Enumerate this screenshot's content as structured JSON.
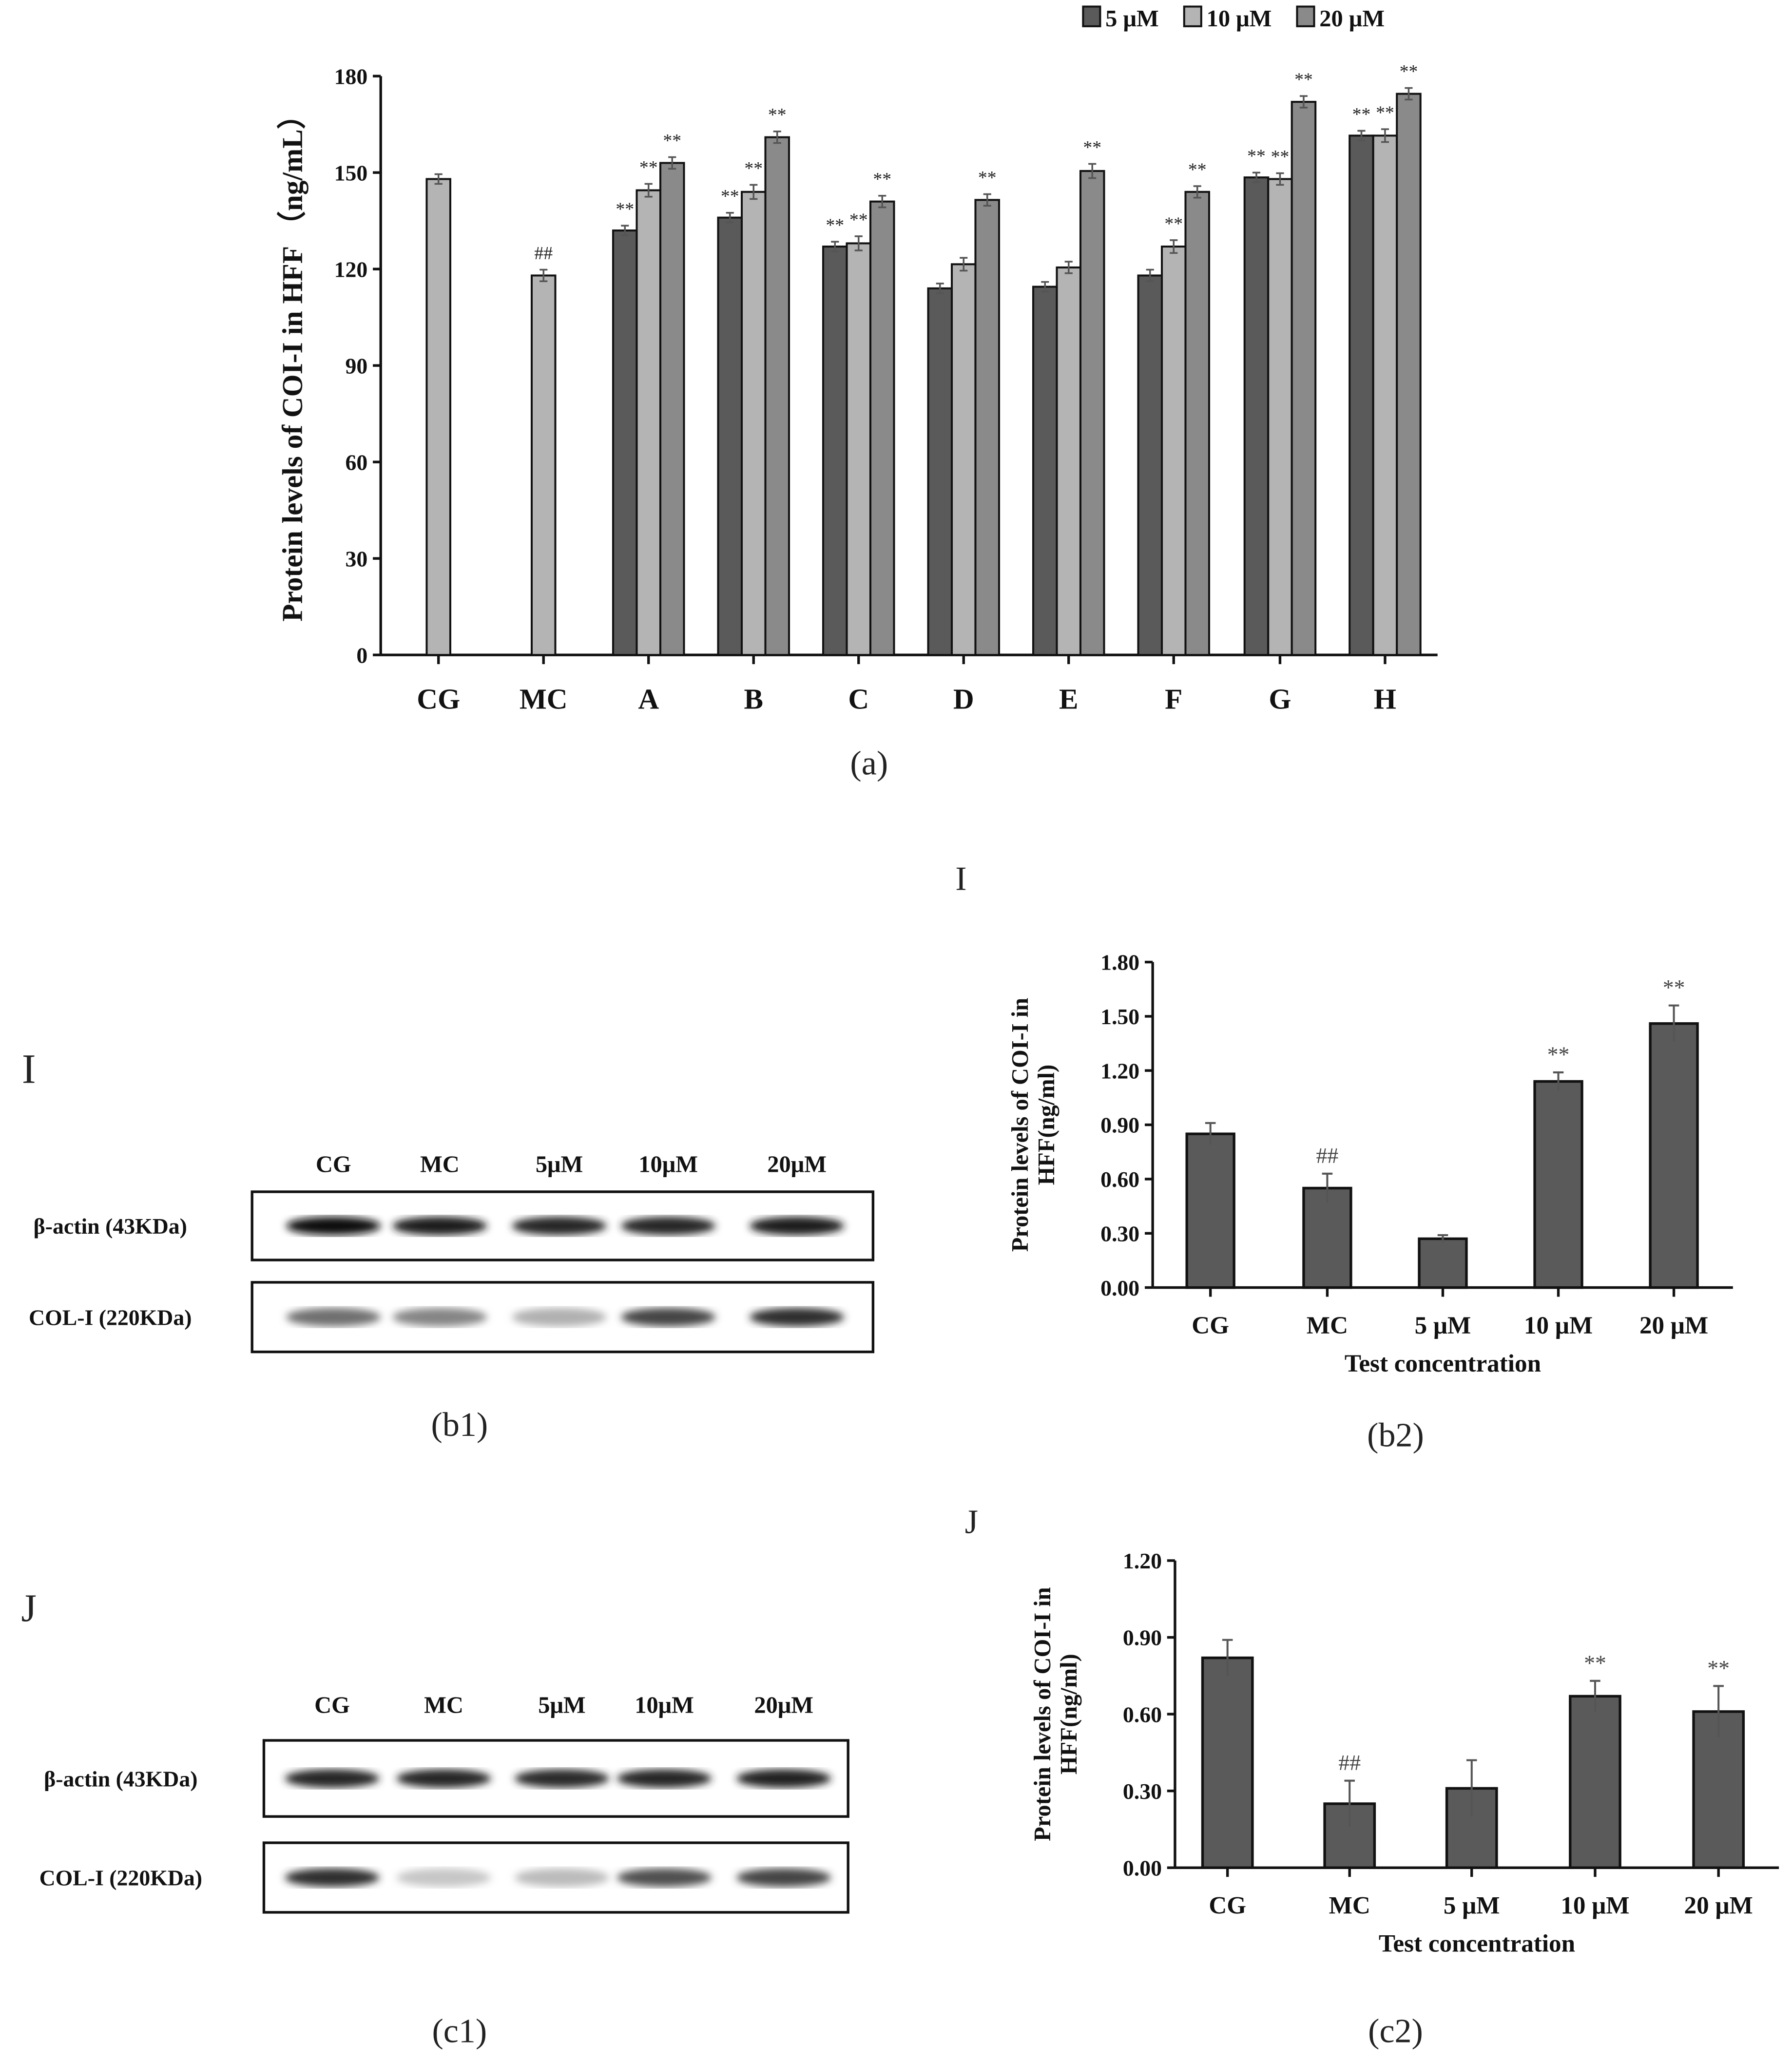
{
  "colors": {
    "s5": "#5a5a5a",
    "s10": "#b4b4b4",
    "s20": "#8a8a8a",
    "bar": "#5a5a5a",
    "axis": "#111111"
  },
  "panel_labels": {
    "a": "(a)",
    "b1": "(b1)",
    "b2": "(b2)",
    "c1": "(c1)",
    "c2": "(c2)",
    "I_top": "I",
    "I_left": "I",
    "J_top": "J",
    "J_left": "J"
  },
  "blots": {
    "b1": {
      "lanes": [
        "CG",
        "MC",
        "5μM",
        "10μM",
        "20μM"
      ],
      "rows": [
        "β-actin (43KDa)",
        "COL-I (220KDa)"
      ],
      "band_intensity": [
        [
          1.0,
          0.95,
          0.9,
          0.9,
          0.95
        ],
        [
          0.55,
          0.45,
          0.25,
          0.75,
          0.85
        ]
      ]
    },
    "c1": {
      "lanes": [
        "CG",
        "MC",
        "5μM",
        "10μM",
        "20μM"
      ],
      "rows": [
        "β-actin (43KDa)",
        "COL-I (220KDa)"
      ],
      "band_intensity": [
        [
          0.9,
          0.9,
          0.88,
          0.9,
          0.92
        ],
        [
          0.85,
          0.15,
          0.2,
          0.7,
          0.75
        ]
      ]
    }
  },
  "chart_data": [
    {
      "id": "a",
      "type": "bar",
      "title": "",
      "xlabel": "",
      "ylabel": "Protein levels of COI-I in HFF （ng/mL）",
      "ylim": [
        0,
        180
      ],
      "yticks": [
        "0",
        "30",
        "60",
        "90",
        "120",
        "150",
        "180"
      ],
      "categories": [
        "CG",
        "MC",
        "A",
        "B",
        "C",
        "D",
        "E",
        "F",
        "G",
        "H"
      ],
      "legend": {
        "placement": "top-right",
        "entries": [
          "5 μM",
          "10 μM",
          "20 μM"
        ]
      },
      "series": [
        {
          "name": "5 μM",
          "values": [
            null,
            null,
            132,
            136,
            127,
            114,
            114.5,
            118,
            148.5,
            161.5
          ],
          "errors": [
            null,
            null,
            1.5,
            1.5,
            1.5,
            1.5,
            1.5,
            1.8,
            1.5,
            1.5
          ],
          "annot": [
            "",
            "",
            "**",
            "**",
            "**",
            "",
            "",
            "",
            "**",
            "**"
          ]
        },
        {
          "name": "10 μM",
          "values": [
            148,
            118,
            144.5,
            144,
            128,
            121.5,
            120.5,
            127,
            148,
            161.5
          ],
          "errors": [
            1.5,
            1.8,
            2,
            2.2,
            2.2,
            2,
            1.8,
            2,
            1.8,
            2
          ],
          "annot": [
            "",
            "##",
            "**",
            "**",
            "**",
            "",
            "",
            "**",
            "**",
            "**"
          ]
        },
        {
          "name": "20 μM",
          "values": [
            null,
            null,
            153,
            161,
            141,
            141.5,
            150.5,
            144,
            172,
            174.5
          ],
          "errors": [
            null,
            null,
            1.8,
            1.8,
            1.8,
            1.8,
            2.2,
            1.8,
            1.8,
            1.8
          ],
          "annot": [
            "",
            "",
            "**",
            "**",
            "**",
            "**",
            "**",
            "**",
            "**",
            "**"
          ]
        }
      ]
    },
    {
      "id": "b2",
      "type": "bar",
      "xlabel": "Test concentration",
      "ylabel": "Protein levels of COI-I in HFF(ng/ml)",
      "ylabel_lines": [
        "Protein levels of COI-I in",
        "HFF(ng/ml)"
      ],
      "ylim": [
        0,
        1.8
      ],
      "yticks": [
        "0.00",
        "0.30",
        "0.60",
        "0.90",
        "1.20",
        "1.50",
        "1.80"
      ],
      "categories": [
        "CG",
        "MC",
        "5 μM",
        "10 μM",
        "20 μM"
      ],
      "values": [
        0.85,
        0.55,
        0.27,
        1.14,
        1.46
      ],
      "errors": [
        0.06,
        0.08,
        0.02,
        0.05,
        0.1
      ],
      "annot": [
        "",
        "##",
        "",
        "**",
        "**"
      ]
    },
    {
      "id": "c2",
      "type": "bar",
      "xlabel": "Test concentration",
      "ylabel": "Protein levels of COI-I in HFF(ng/ml)",
      "ylabel_lines": [
        "Protein levels of COI-I in",
        "HFF(ng/ml)"
      ],
      "ylim": [
        0,
        1.2
      ],
      "yticks": [
        "0.00",
        "0.30",
        "0.60",
        "0.90",
        "1.20"
      ],
      "categories": [
        "CG",
        "MC",
        "5 μM",
        "10 μM",
        "20 μM"
      ],
      "values": [
        0.82,
        0.25,
        0.31,
        0.67,
        0.61
      ],
      "errors": [
        0.07,
        0.09,
        0.11,
        0.06,
        0.1
      ],
      "annot": [
        "",
        "##",
        "",
        "**",
        "**"
      ]
    }
  ]
}
